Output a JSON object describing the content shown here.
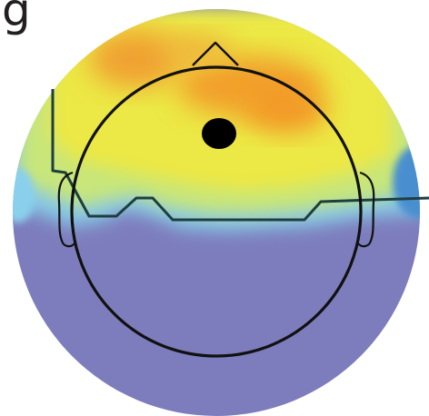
{
  "figure": {
    "panel_label": "g"
  },
  "colors": {
    "low": "#7d7dbd",
    "cyan": "#78c8e8",
    "yellow": "#e6e632",
    "orange": "#f0a02a",
    "outline": "#1a1a1a",
    "contour": "#1f3f3f",
    "marker": "#000000"
  }
}
